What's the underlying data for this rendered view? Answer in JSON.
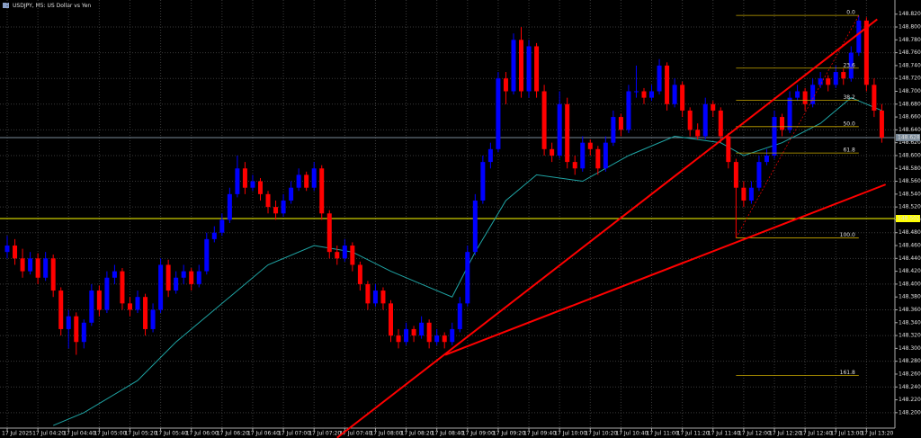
{
  "chart_data": {
    "type": "candlestick",
    "title": "USDJPY, M5:  US Dollar vs Yen",
    "up_color": "#0000ff",
    "down_color": "#ff0000",
    "grid": true,
    "ylim": [
      148.176,
      148.842
    ],
    "yticks": [
      {
        "value": 148.2,
        "label": "148.200"
      },
      {
        "value": 148.22,
        "label": "148.220"
      },
      {
        "value": 148.24,
        "label": "148.240"
      },
      {
        "value": 148.26,
        "label": "148.260"
      },
      {
        "value": 148.28,
        "label": "148.280"
      },
      {
        "value": 148.3,
        "label": "148.300"
      },
      {
        "value": 148.32,
        "label": "148.320"
      },
      {
        "value": 148.34,
        "label": "148.340"
      },
      {
        "value": 148.36,
        "label": "148.360"
      },
      {
        "value": 148.38,
        "label": "148.380"
      },
      {
        "value": 148.4,
        "label": "148.400"
      },
      {
        "value": 148.42,
        "label": "148.420"
      },
      {
        "value": 148.44,
        "label": "148.440"
      },
      {
        "value": 148.46,
        "label": "148.460"
      },
      {
        "value": 148.48,
        "label": "148.480"
      },
      {
        "value": 148.5,
        "label": "148.500"
      },
      {
        "value": 148.52,
        "label": "148.520"
      },
      {
        "value": 148.54,
        "label": "148.540"
      },
      {
        "value": 148.56,
        "label": "148.560"
      },
      {
        "value": 148.58,
        "label": "148.580"
      },
      {
        "value": 148.6,
        "label": "148.600"
      },
      {
        "value": 148.62,
        "label": "148.620"
      },
      {
        "value": 148.64,
        "label": "148.640"
      },
      {
        "value": 148.66,
        "label": "148.660"
      },
      {
        "value": 148.68,
        "label": "148.680"
      },
      {
        "value": 148.7,
        "label": "148.700"
      },
      {
        "value": 148.72,
        "label": "148.720"
      },
      {
        "value": 148.74,
        "label": "148.740"
      },
      {
        "value": 148.76,
        "label": "148.760"
      },
      {
        "value": 148.78,
        "label": "148.780"
      },
      {
        "value": 148.8,
        "label": "148.800"
      },
      {
        "value": 148.82,
        "label": "148.820"
      }
    ],
    "categories": [
      "17 Jul 2025",
      null,
      null,
      null,
      "17 Jul 04:20",
      null,
      null,
      null,
      "17 Jul 04:40",
      null,
      null,
      null,
      "17 Jul 05:00",
      null,
      null,
      null,
      "17 Jul 05:20",
      null,
      null,
      null,
      "17 Jul 05:40",
      null,
      null,
      null,
      "17 Jul 06:00",
      null,
      null,
      null,
      "17 Jul 06:20",
      null,
      null,
      null,
      "17 Jul 06:40",
      null,
      null,
      null,
      "17 Jul 07:00",
      null,
      null,
      null,
      "17 Jul 07:20",
      null,
      null,
      null,
      "17 Jul 07:40",
      null,
      null,
      null,
      "17 Jul 08:00",
      null,
      null,
      null,
      "17 Jul 08:20",
      null,
      null,
      null,
      "17 Jul 08:40",
      null,
      null,
      null,
      "17 Jul 09:00",
      null,
      null,
      null,
      "17 Jul 09:20",
      null,
      null,
      null,
      "17 Jul 09:40",
      null,
      null,
      null,
      "17 Jul 10:00",
      null,
      null,
      null,
      "17 Jul 10:20",
      null,
      null,
      null,
      "17 Jul 10:40",
      null,
      null,
      null,
      "17 Jul 11:00",
      null,
      null,
      null,
      "17 Jul 11:20",
      null,
      null,
      null,
      "17 Jul 11:40",
      null,
      null,
      null,
      "17 Jul 12:00",
      null,
      null,
      null,
      "17 Jul 12:20",
      null,
      null,
      null,
      "17 Jul 12:40",
      null,
      null,
      null,
      "17 Jul 13:00",
      null,
      null,
      null,
      "17 Jul 13:20",
      null,
      null
    ],
    "ohlc": [
      [
        148.45,
        148.475,
        148.44,
        148.46
      ],
      [
        148.46,
        148.47,
        148.43,
        148.44
      ],
      [
        148.44,
        148.455,
        148.41,
        148.42
      ],
      [
        148.42,
        148.45,
        148.415,
        148.44
      ],
      [
        148.44,
        148.448,
        148.4,
        148.41
      ],
      [
        148.41,
        148.45,
        148.405,
        148.44
      ],
      [
        148.44,
        148.446,
        148.38,
        148.39
      ],
      [
        148.39,
        148.395,
        148.32,
        148.33
      ],
      [
        148.33,
        148.36,
        148.3,
        148.35
      ],
      [
        148.35,
        148.356,
        148.29,
        148.31
      ],
      [
        148.31,
        148.345,
        148.3,
        148.34
      ],
      [
        148.34,
        148.4,
        148.335,
        148.39
      ],
      [
        148.39,
        148.398,
        148.35,
        148.36
      ],
      [
        148.36,
        148.42,
        148.355,
        148.41
      ],
      [
        148.41,
        148.43,
        148.4,
        148.42
      ],
      [
        148.42,
        148.425,
        148.36,
        148.37
      ],
      [
        148.37,
        148.38,
        148.35,
        148.36
      ],
      [
        148.36,
        148.39,
        148.355,
        148.38
      ],
      [
        148.38,
        148.385,
        148.32,
        148.33
      ],
      [
        148.33,
        148.37,
        148.325,
        148.36
      ],
      [
        148.36,
        148.44,
        148.355,
        148.43
      ],
      [
        148.43,
        148.438,
        148.38,
        148.39
      ],
      [
        148.39,
        148.42,
        148.385,
        148.41
      ],
      [
        148.41,
        148.43,
        148.4,
        148.42
      ],
      [
        148.42,
        148.425,
        148.39,
        148.4
      ],
      [
        148.4,
        148.43,
        148.395,
        148.42
      ],
      [
        148.42,
        148.48,
        148.415,
        148.47
      ],
      [
        148.47,
        148.49,
        148.465,
        148.48
      ],
      [
        148.48,
        148.51,
        148.475,
        148.5
      ],
      [
        148.5,
        148.55,
        148.495,
        148.54
      ],
      [
        148.54,
        148.6,
        148.535,
        148.58
      ],
      [
        148.58,
        148.59,
        148.54,
        148.55
      ],
      [
        148.55,
        148.57,
        148.545,
        148.56
      ],
      [
        148.56,
        148.565,
        148.53,
        148.54
      ],
      [
        148.54,
        148.545,
        148.51,
        148.52
      ],
      [
        148.52,
        148.53,
        148.5,
        148.51
      ],
      [
        148.51,
        148.54,
        148.505,
        148.53
      ],
      [
        148.53,
        148.56,
        148.525,
        148.55
      ],
      [
        148.55,
        148.58,
        148.545,
        148.57
      ],
      [
        148.57,
        148.575,
        148.545,
        148.55
      ],
      [
        148.55,
        148.59,
        148.545,
        148.58
      ],
      [
        148.58,
        148.585,
        148.5,
        148.51
      ],
      [
        148.51,
        148.515,
        148.44,
        148.45
      ],
      [
        148.45,
        148.46,
        148.43,
        148.44
      ],
      [
        148.44,
        148.47,
        148.435,
        148.46
      ],
      [
        148.46,
        148.465,
        148.42,
        148.43
      ],
      [
        148.43,
        148.435,
        148.39,
        148.4
      ],
      [
        148.4,
        148.405,
        148.36,
        148.37
      ],
      [
        148.37,
        148.4,
        148.365,
        148.39
      ],
      [
        148.39,
        148.395,
        148.36,
        148.37
      ],
      [
        148.37,
        148.375,
        148.31,
        148.32
      ],
      [
        148.32,
        148.33,
        148.3,
        148.31
      ],
      [
        148.31,
        148.34,
        148.305,
        148.33
      ],
      [
        148.33,
        148.335,
        148.31,
        148.32
      ],
      [
        148.32,
        148.35,
        148.315,
        148.34
      ],
      [
        148.34,
        148.345,
        148.3,
        148.31
      ],
      [
        148.31,
        148.33,
        148.305,
        148.32
      ],
      [
        148.32,
        148.325,
        148.3,
        148.31
      ],
      [
        148.31,
        148.34,
        148.305,
        148.33
      ],
      [
        148.33,
        148.38,
        148.325,
        148.37
      ],
      [
        148.37,
        148.46,
        148.365,
        148.45
      ],
      [
        148.45,
        148.54,
        148.445,
        148.53
      ],
      [
        148.53,
        148.6,
        148.525,
        148.59
      ],
      [
        148.59,
        148.62,
        148.58,
        148.61
      ],
      [
        148.61,
        148.73,
        148.605,
        148.72
      ],
      [
        148.72,
        148.73,
        148.68,
        148.7
      ],
      [
        148.7,
        148.79,
        148.695,
        148.78
      ],
      [
        148.78,
        148.8,
        148.69,
        148.7
      ],
      [
        148.7,
        148.78,
        148.69,
        148.77
      ],
      [
        148.77,
        148.775,
        148.69,
        148.7
      ],
      [
        148.7,
        148.71,
        148.6,
        148.61
      ],
      [
        148.61,
        148.62,
        148.59,
        148.6
      ],
      [
        148.6,
        148.7,
        148.595,
        148.68
      ],
      [
        148.68,
        148.69,
        148.58,
        148.59
      ],
      [
        148.59,
        148.6,
        148.57,
        148.58
      ],
      [
        148.58,
        148.63,
        148.575,
        148.62
      ],
      [
        148.62,
        148.625,
        148.6,
        148.61
      ],
      [
        148.61,
        148.615,
        148.57,
        148.58
      ],
      [
        148.58,
        148.63,
        148.575,
        148.62
      ],
      [
        148.62,
        148.67,
        148.615,
        148.66
      ],
      [
        148.66,
        148.665,
        148.63,
        148.64
      ],
      [
        148.64,
        148.71,
        148.635,
        148.7
      ],
      [
        148.7,
        148.74,
        148.69,
        148.7
      ],
      [
        148.7,
        148.705,
        148.68,
        148.69
      ],
      [
        148.69,
        148.71,
        148.685,
        148.7
      ],
      [
        148.7,
        148.75,
        148.695,
        148.74
      ],
      [
        148.74,
        148.745,
        148.67,
        148.68
      ],
      [
        148.68,
        148.72,
        148.675,
        148.71
      ],
      [
        148.71,
        148.715,
        148.66,
        148.67
      ],
      [
        148.67,
        148.675,
        148.63,
        148.64
      ],
      [
        148.64,
        148.65,
        148.625,
        148.63
      ],
      [
        148.63,
        148.69,
        148.625,
        148.68
      ],
      [
        148.68,
        148.685,
        148.66,
        148.67
      ],
      [
        148.67,
        148.675,
        148.62,
        148.63
      ],
      [
        148.63,
        148.635,
        148.58,
        148.59
      ],
      [
        148.59,
        148.595,
        148.472,
        148.55
      ],
      [
        148.55,
        148.56,
        148.52,
        148.53
      ],
      [
        148.53,
        148.56,
        148.525,
        148.55
      ],
      [
        148.55,
        148.6,
        148.545,
        148.59
      ],
      [
        148.59,
        148.61,
        148.585,
        148.6
      ],
      [
        148.6,
        148.67,
        148.595,
        148.66
      ],
      [
        148.66,
        148.665,
        148.63,
        148.64
      ],
      [
        148.64,
        148.7,
        148.635,
        148.69
      ],
      [
        148.69,
        148.71,
        148.685,
        148.7
      ],
      [
        148.7,
        148.705,
        148.67,
        148.68
      ],
      [
        148.68,
        148.72,
        148.675,
        148.71
      ],
      [
        148.71,
        148.73,
        148.705,
        148.72
      ],
      [
        148.72,
        148.725,
        148.7,
        148.71
      ],
      [
        148.71,
        148.74,
        148.705,
        148.73
      ],
      [
        148.73,
        148.735,
        148.71,
        148.72
      ],
      [
        148.72,
        148.77,
        148.715,
        148.76
      ],
      [
        148.76,
        148.818,
        148.755,
        148.81
      ],
      [
        148.81,
        148.815,
        148.7,
        148.71
      ],
      [
        148.71,
        148.72,
        148.66,
        148.67
      ],
      [
        148.67,
        148.68,
        148.62,
        148.628
      ]
    ],
    "ma": {
      "color": "#1fa5a5",
      "x": [
        6,
        10,
        17,
        22,
        29,
        34,
        40,
        45,
        50,
        54,
        58,
        61,
        65,
        69,
        75,
        81,
        87,
        93,
        96,
        101,
        106,
        110,
        114
      ],
      "values": [
        148.18,
        148.2,
        148.25,
        148.31,
        148.38,
        148.43,
        148.46,
        148.45,
        148.42,
        148.4,
        148.38,
        148.45,
        148.53,
        148.57,
        148.56,
        148.6,
        148.63,
        148.62,
        148.6,
        148.62,
        148.65,
        148.69,
        148.67
      ]
    },
    "hlines": [
      {
        "value": 148.502,
        "label": "148.502",
        "color": "#ffff00"
      },
      {
        "value": 148.628,
        "label": "148.628",
        "color": "#7a8a99"
      }
    ],
    "trendlines": [
      {
        "color": "#ff0000",
        "x": [
          43,
          113.4
        ],
        "y": [
          148.161,
          148.812
        ]
      },
      {
        "color": "#ff0000",
        "x": [
          57.1,
          114.5
        ],
        "y": [
          148.29,
          148.555
        ]
      }
    ],
    "fibonacci": {
      "color": "#c8a800",
      "from": [
        95,
        148.472
      ],
      "to": [
        111,
        148.818
      ],
      "levels": [
        {
          "label": "0.0",
          "price": 148.818
        },
        {
          "label": "23.6",
          "price": 148.736
        },
        {
          "label": "38.2",
          "price": 148.686
        },
        {
          "label": "50.0",
          "price": 148.645
        },
        {
          "label": "61.8",
          "price": 148.604
        },
        {
          "label": "100.0",
          "price": 148.472
        },
        {
          "label": "161.8",
          "price": 148.258
        }
      ]
    }
  }
}
